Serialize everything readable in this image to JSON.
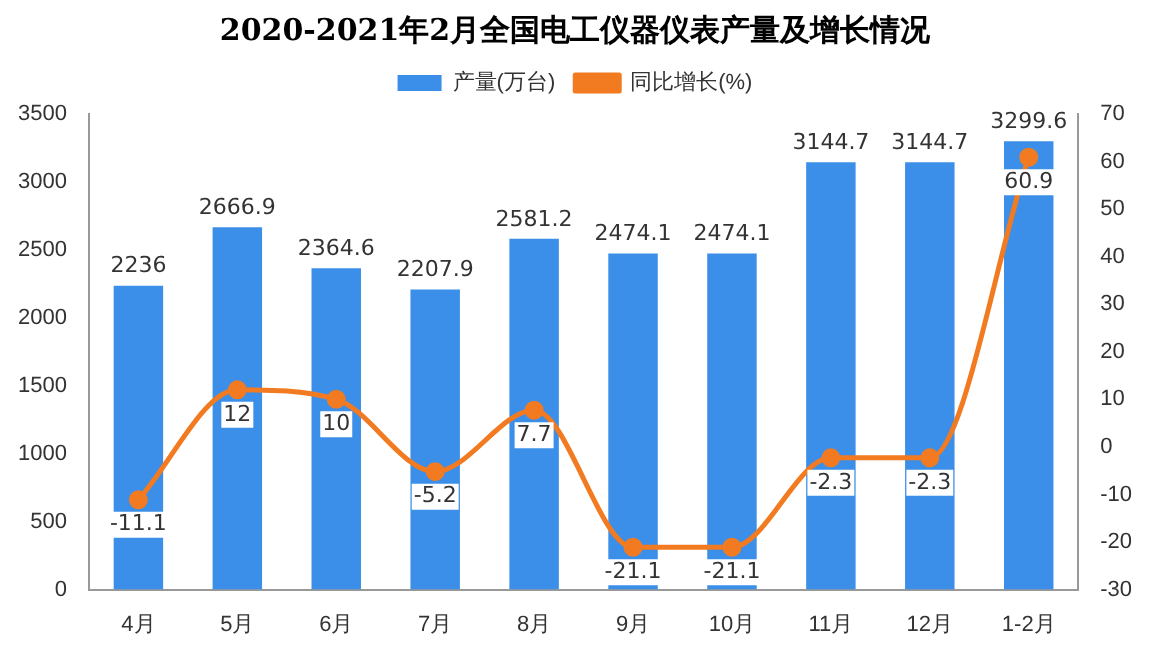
{
  "chart_data": {
    "type": "bar",
    "title": "2020-2021年2月全国电工仪器仪表产量及增长情况",
    "categories": [
      "4月",
      "5月",
      "6月",
      "7月",
      "8月",
      "9月",
      "10月",
      "11月",
      "12月",
      "1-2月"
    ],
    "series": [
      {
        "name": "产量(万台)",
        "color": "#3b8fe8",
        "values": [
          2236,
          2666.9,
          2364.6,
          2207.9,
          2581.2,
          2474.1,
          2474.1,
          3144.7,
          3144.7,
          3299.6
        ]
      },
      {
        "name": "同比增长(%)",
        "type": "line",
        "axis": "y2",
        "color": "#f27a21",
        "marker": "circle",
        "values": [
          -11.1,
          12,
          10,
          -5.2,
          7.7,
          -21.1,
          -21.1,
          -2.3,
          -2.3,
          60.9
        ]
      }
    ],
    "ylim": [
      0,
      3500
    ],
    "yticks": [
      0,
      500,
      1000,
      1500,
      2000,
      2500,
      3000,
      3500
    ],
    "y2lim": [
      -30,
      70
    ],
    "y2ticks": [
      -30,
      -20,
      -10,
      0,
      10,
      20,
      30,
      40,
      50,
      60,
      70
    ],
    "data_labels": true,
    "legend": "top",
    "grid": false
  }
}
